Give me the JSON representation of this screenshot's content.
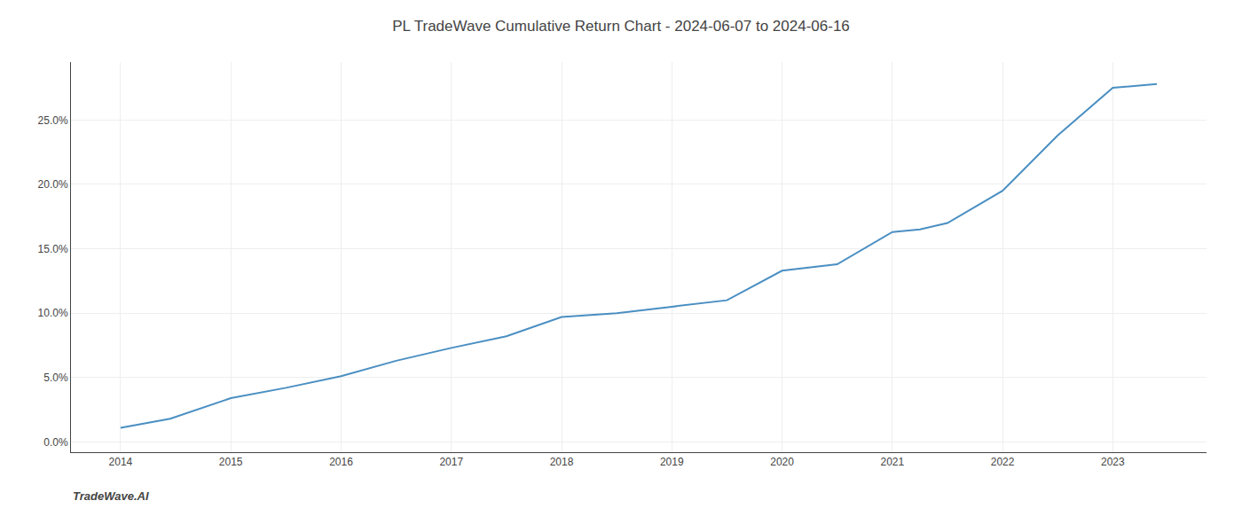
{
  "chart_data": {
    "type": "line",
    "title": "PL TradeWave Cumulative Return Chart - 2024-06-07 to 2024-06-16",
    "annotations": [
      "TradeWave.AI"
    ],
    "x": [
      2014.0,
      2014.45,
      2015.0,
      2015.5,
      2016.0,
      2016.5,
      2017.0,
      2017.5,
      2018.0,
      2018.5,
      2019.0,
      2019.5,
      2020.0,
      2020.5,
      2021.0,
      2021.25,
      2021.5,
      2022.0,
      2022.5,
      2023.0,
      2023.4
    ],
    "values": [
      0.011,
      0.018,
      0.034,
      0.042,
      0.051,
      0.063,
      0.073,
      0.082,
      0.097,
      0.1,
      0.105,
      0.11,
      0.133,
      0.138,
      0.163,
      0.165,
      0.17,
      0.195,
      0.238,
      0.275,
      0.278
    ],
    "color": "#4a8fc2",
    "xlim": [
      2013.55,
      2023.85
    ],
    "xticks": [
      2014,
      2015,
      2016,
      2017,
      2018,
      2019,
      2020,
      2021,
      2022,
      2023
    ],
    "ylim": [
      -0.008,
      0.295
    ],
    "yticks": [
      {
        "value": 0.0,
        "label": "0.0%"
      },
      {
        "value": 0.05,
        "label": "5.0%"
      },
      {
        "value": 0.1,
        "label": "10.0%"
      },
      {
        "value": 0.15,
        "label": "15.0%"
      },
      {
        "value": 0.2,
        "label": "20.0%"
      },
      {
        "value": 0.25,
        "label": "25.0%"
      }
    ],
    "grid": true
  }
}
